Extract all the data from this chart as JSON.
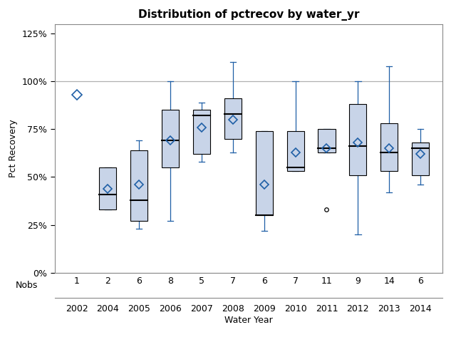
{
  "title": "Distribution of pctrecov by water_yr",
  "xlabel": "Water Year",
  "ylabel": "Pct Recovery",
  "years": [
    2002,
    2004,
    2005,
    2006,
    2007,
    2008,
    2009,
    2010,
    2011,
    2012,
    2013,
    2014
  ],
  "nobs": [
    1,
    2,
    6,
    8,
    5,
    7,
    6,
    7,
    11,
    9,
    14,
    6
  ],
  "boxes": [
    {
      "year": 2002,
      "q1": null,
      "median": null,
      "q3": null,
      "whislo": null,
      "whishi": null,
      "mean": 93,
      "fliers": []
    },
    {
      "year": 2004,
      "q1": 33,
      "median": 41,
      "q3": 55,
      "whislo": 33,
      "whishi": 55,
      "mean": 44,
      "fliers": []
    },
    {
      "year": 2005,
      "q1": 27,
      "median": 38,
      "q3": 64,
      "whislo": 23,
      "whishi": 69,
      "mean": 46,
      "fliers": []
    },
    {
      "year": 2006,
      "q1": 55,
      "median": 69,
      "q3": 85,
      "whislo": 27,
      "whishi": 100,
      "mean": 69,
      "fliers": []
    },
    {
      "year": 2007,
      "q1": 62,
      "median": 82,
      "q3": 85,
      "whislo": 58,
      "whishi": 89,
      "mean": 76,
      "fliers": []
    },
    {
      "year": 2008,
      "q1": 70,
      "median": 83,
      "q3": 91,
      "whislo": 63,
      "whishi": 110,
      "mean": 80,
      "fliers": []
    },
    {
      "year": 2009,
      "q1": 30,
      "median": 30,
      "q3": 74,
      "whislo": 22,
      "whishi": 74,
      "mean": 46,
      "fliers": []
    },
    {
      "year": 2010,
      "q1": 53,
      "median": 55,
      "q3": 74,
      "whislo": 53,
      "whishi": 100,
      "mean": 63,
      "fliers": []
    },
    {
      "year": 2011,
      "q1": 63,
      "median": 65,
      "q3": 75,
      "whislo": 63,
      "whishi": 75,
      "mean": 65,
      "fliers": [
        33
      ]
    },
    {
      "year": 2012,
      "q1": 51,
      "median": 66,
      "q3": 88,
      "whislo": 20,
      "whishi": 100,
      "mean": 68,
      "fliers": []
    },
    {
      "year": 2013,
      "q1": 53,
      "median": 63,
      "q3": 78,
      "whislo": 42,
      "whishi": 108,
      "mean": 65,
      "fliers": []
    },
    {
      "year": 2014,
      "q1": 51,
      "median": 65,
      "q3": 68,
      "whislo": 46,
      "whishi": 75,
      "mean": 62,
      "fliers": []
    }
  ],
  "box_color": "#c8d4e8",
  "box_edge_color": "#000000",
  "median_color": "#000000",
  "whisker_color": "#1f5fa6",
  "mean_color": "#1f5fa6",
  "flier_color": "#000000",
  "reference_line_y": 100,
  "yticks": [
    0,
    25,
    50,
    75,
    100,
    125
  ],
  "ytick_labels": [
    "0%",
    "25%",
    "50%",
    "75%",
    "100%",
    "125%"
  ],
  "ylim": [
    0,
    130
  ],
  "background_color": "#ffffff",
  "grid_color": "#b0b0b0",
  "title_fontsize": 11,
  "axis_fontsize": 9,
  "label_fontsize": 9
}
